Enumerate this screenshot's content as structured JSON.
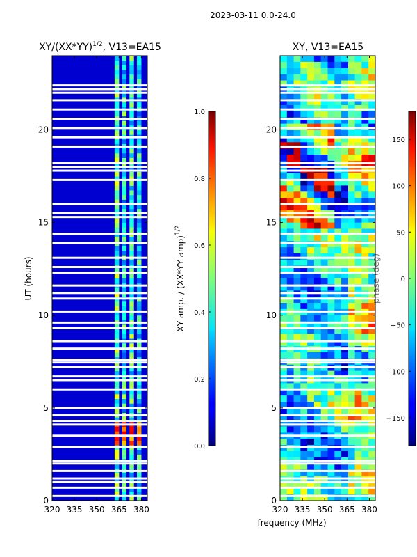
{
  "suptitle": "2023-03-11 0.0-24.0",
  "chart_data": [
    {
      "type": "heatmap",
      "title_main": "XY/(XX*YY)",
      "title_sup": "1/2",
      "title_rest": ", V13=EA15",
      "xlabel": "",
      "ylabel": "UT (hours)",
      "xlim": [
        320,
        384
      ],
      "ylim": [
        0,
        24
      ],
      "xticks": [
        "320",
        "335",
        "350",
        "365",
        "380"
      ],
      "xtick_values": [
        320,
        335,
        350,
        365,
        380
      ],
      "yticks": [
        "0",
        "5",
        "10",
        "15",
        "20"
      ],
      "ytick_values": [
        0,
        5,
        10,
        15,
        20
      ],
      "colorbar": {
        "label_main": "XY amp. / (XX*YY amp)",
        "label_sup": "1/2",
        "min": 0.0,
        "max": 1.0,
        "ticks": [
          "0.0",
          "0.2",
          "0.4",
          "0.6",
          "0.8",
          "1.0"
        ],
        "tick_values": [
          0.0,
          0.2,
          0.4,
          0.6,
          0.8,
          1.0
        ]
      },
      "colormap": "jet",
      "background_level": 0.08,
      "band_columns": [
        {
          "from": 362,
          "to": 365,
          "level": 0.45
        },
        {
          "from": 367,
          "to": 370,
          "level": 0.38
        },
        {
          "from": 372,
          "to": 375,
          "level": 0.42
        },
        {
          "from": 377,
          "to": 380,
          "level": 0.36
        }
      ],
      "high_rows": [
        {
          "from": 3.0,
          "to": 4.2,
          "level": 0.8
        }
      ],
      "flagged_rows": [
        0.25,
        0.7,
        1.0,
        1.2,
        1.6,
        2.0,
        2.15,
        2.9,
        3.5,
        4.1,
        4.3,
        4.6,
        5.0,
        6.0,
        6.5,
        6.7,
        7.2,
        7.45,
        7.6,
        8.2,
        8.6,
        9.3,
        9.6,
        10.2,
        10.9,
        11.2,
        11.6,
        12.3,
        12.6,
        13.1,
        13.9,
        14.4,
        15.3,
        15.5,
        16.0,
        17.3,
        17.8,
        18.0,
        18.2,
        19.1,
        19.6,
        20.1,
        20.6,
        21.1,
        21.6,
        22.0,
        22.2,
        22.4
      ]
    },
    {
      "type": "heatmap",
      "title_main": "XY, V13=EA15",
      "xlabel": "frequency (MHz)",
      "ylabel": "",
      "xlim": [
        320,
        384
      ],
      "ylim": [
        0,
        24
      ],
      "xticks": [
        "320",
        "335",
        "350",
        "365",
        "380"
      ],
      "xtick_values": [
        320,
        335,
        350,
        365,
        380
      ],
      "yticks": [
        "0",
        "5",
        "10",
        "15",
        "20"
      ],
      "ytick_values": [
        0,
        5,
        10,
        15,
        20
      ],
      "colorbar": {
        "label_main": "phase (deg)",
        "min": -180,
        "max": 180,
        "ticks": [
          "−150",
          "−100",
          "−50",
          "0",
          "50",
          "100",
          "150"
        ],
        "tick_values": [
          -150,
          -100,
          -50,
          0,
          50,
          100,
          150
        ]
      },
      "colormap": "jet",
      "flagged_rows": [
        0.25,
        0.7,
        1.0,
        1.2,
        1.6,
        2.0,
        2.15,
        2.9,
        3.5,
        4.1,
        4.3,
        4.6,
        5.0,
        6.0,
        6.5,
        6.7,
        7.2,
        7.45,
        7.6,
        8.2,
        8.6,
        9.3,
        9.6,
        10.2,
        10.9,
        11.2,
        11.6,
        12.3,
        12.6,
        13.1,
        13.9,
        14.4,
        15.3,
        15.5,
        16.0,
        17.3,
        17.8,
        18.0,
        18.2,
        19.1,
        19.6,
        20.1,
        20.6,
        21.1,
        21.6,
        22.0,
        22.2,
        22.4
      ]
    }
  ]
}
